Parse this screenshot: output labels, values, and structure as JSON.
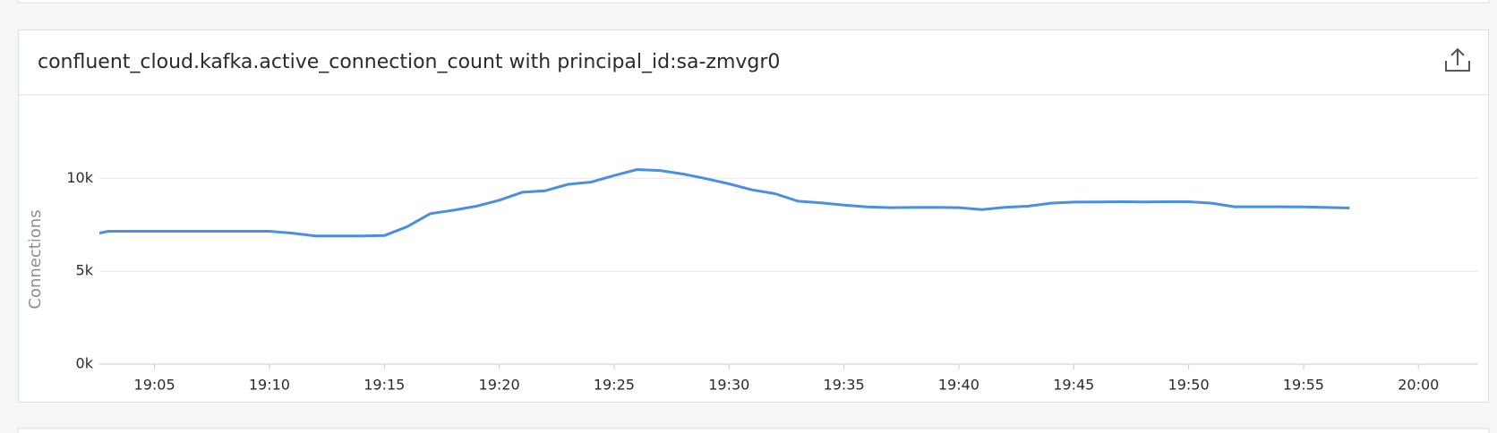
{
  "panel": {
    "title": "confluent_cloud.kafka.active_connection_count with principal_id:sa-zmvgr0"
  },
  "chart_data": {
    "type": "line",
    "ylabel": "Connections",
    "x": [
      "19:02",
      "19:03",
      "19:04",
      "19:05",
      "19:06",
      "19:07",
      "19:08",
      "19:09",
      "19:10",
      "19:11",
      "19:12",
      "19:13",
      "19:14",
      "19:15",
      "19:16",
      "19:17",
      "19:18",
      "19:19",
      "19:20",
      "19:21",
      "19:22",
      "19:23",
      "19:24",
      "19:25",
      "19:26",
      "19:27",
      "19:28",
      "19:29",
      "19:30",
      "19:31",
      "19:32",
      "19:33",
      "19:34",
      "19:35",
      "19:36",
      "19:37",
      "19:38",
      "19:39",
      "19:40",
      "19:41",
      "19:42",
      "19:43",
      "19:44",
      "19:45",
      "19:46",
      "19:47",
      "19:48",
      "19:49",
      "19:50",
      "19:51",
      "19:52",
      "19:53",
      "19:54",
      "19:55",
      "19:56",
      "19:57"
    ],
    "values": [
      6900,
      7150,
      7150,
      7150,
      7150,
      7150,
      7150,
      7150,
      7150,
      7050,
      6900,
      6900,
      6900,
      6920,
      7400,
      8100,
      8280,
      8500,
      8820,
      9250,
      9330,
      9680,
      9800,
      10150,
      10470,
      10420,
      10230,
      9980,
      9700,
      9380,
      9170,
      8770,
      8680,
      8560,
      8460,
      8420,
      8430,
      8440,
      8420,
      8320,
      8440,
      8500,
      8660,
      8720,
      8730,
      8740,
      8730,
      8740,
      8740,
      8660,
      8470,
      8470,
      8470,
      8460,
      8430,
      8400
    ],
    "color": "#4a90e2",
    "xlim": [
      "19:02:36",
      "20:02:36"
    ],
    "xticks": [
      "19:05",
      "19:10",
      "19:15",
      "19:20",
      "19:25",
      "19:30",
      "19:35",
      "19:40",
      "19:45",
      "19:50",
      "19:55",
      "20:00"
    ],
    "ylim": [
      0,
      13000
    ],
    "yticks": [
      {
        "value": 0,
        "label": "0k"
      },
      {
        "value": 5000,
        "label": "5k"
      },
      {
        "value": 10000,
        "label": "10k"
      }
    ],
    "grid": true
  }
}
